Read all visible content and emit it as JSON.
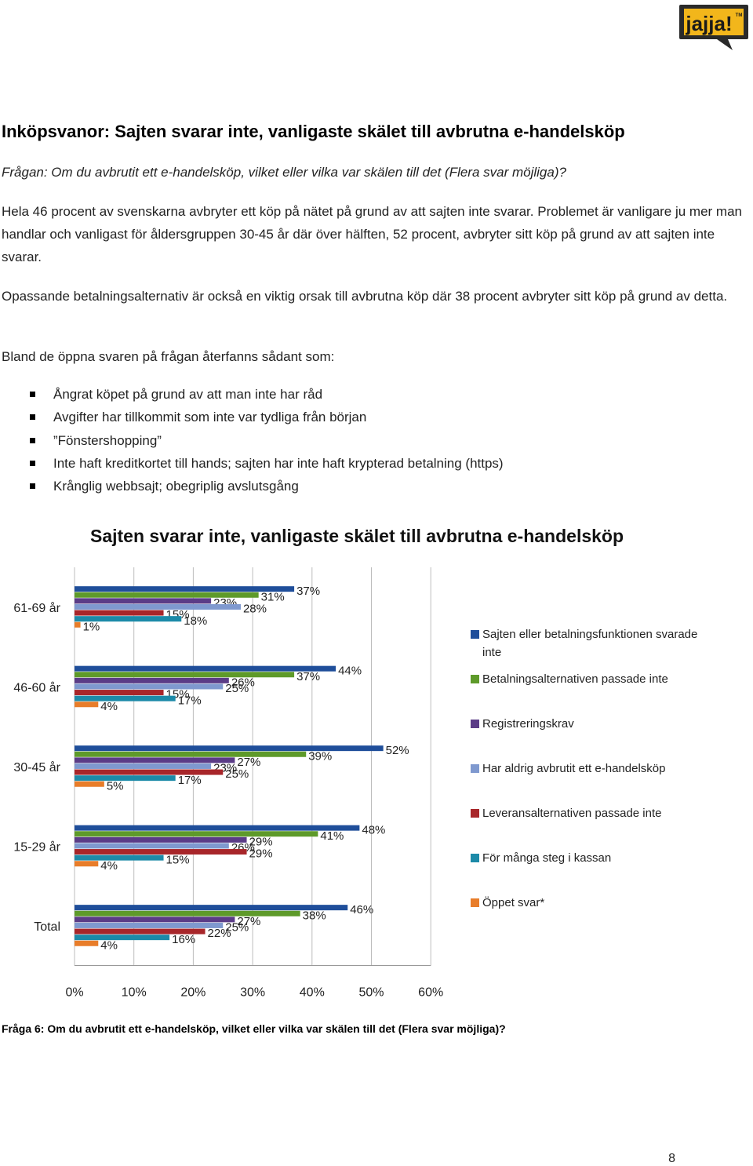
{
  "logo": {
    "text": "jajja!",
    "badge": "TM"
  },
  "heading": "Inköpsvanor: Sajten svarar inte, vanligaste skälet till avbrutna e-handelsköp",
  "question": "Frågan: Om du avbrutit ett e-handelsköp, vilket eller vilka var skälen till det (Flera svar möjliga)?",
  "paragraphs": [
    "Hela 46 procent av svenskarna avbryter ett köp på nätet på grund av att sajten inte svarar. Problemet är vanligare ju mer man handlar och vanligast för åldersgruppen 30-45 år där över hälften, 52 procent, avbryter sitt köp på grund av att sajten inte svarar.",
    "Opassande betalningsalternativ är också en viktig orsak till avbrutna köp där 38 procent avbryter sitt köp på grund av detta.",
    "Bland de öppna svaren på frågan återfanns sådant som:"
  ],
  "bullets": [
    "Ångrat köpet på grund av att man inte har råd",
    "Avgifter har tillkommit som inte var tydliga från början",
    "”Fönstershopping”",
    "Inte haft kreditkortet till hands; sajten har inte haft krypterad betalning (https)",
    "Krånglig webbsajt; obegriplig avslutsgång"
  ],
  "chart_data": {
    "type": "bar",
    "orientation": "horizontal",
    "title": "Sajten svarar inte, vanligaste skälet till avbrutna e-handelsköp",
    "categories": [
      "61-69 år",
      "46-60 år",
      "30-45 år",
      "15-29 år",
      "Total"
    ],
    "xlim": [
      0,
      60
    ],
    "x_ticks": [
      "0%",
      "10%",
      "20%",
      "30%",
      "40%",
      "50%",
      "60%"
    ],
    "value_suffix": "%",
    "grid": true,
    "legend_position": "right",
    "series": [
      {
        "name": "Sajten eller betalningsfunktionen svarade inte",
        "color": "#1F4E9A",
        "values": [
          37,
          44,
          52,
          48,
          46
        ]
      },
      {
        "name": "Betalningsalternativen passade inte",
        "color": "#5E9A2A",
        "values": [
          31,
          37,
          39,
          41,
          38
        ]
      },
      {
        "name": "Registreringskrav",
        "color": "#5B3C87",
        "values": [
          23,
          26,
          27,
          29,
          27
        ]
      },
      {
        "name": "Har aldrig avbrutit ett e-handelsköp",
        "color": "#7F99CF",
        "values": [
          28,
          25,
          23,
          26,
          25
        ]
      },
      {
        "name": "Leveransalternativen passade inte",
        "color": "#A8262A",
        "values": [
          15,
          15,
          25,
          29,
          22
        ]
      },
      {
        "name": "För många steg i kassan",
        "color": "#1C8AA8",
        "values": [
          18,
          17,
          17,
          15,
          16
        ]
      },
      {
        "name": "Öppet svar*",
        "color": "#E87D2A",
        "values": [
          1,
          4,
          5,
          4,
          4
        ]
      }
    ]
  },
  "caption": "Fråga 6: Om du avbrutit ett e-handelsköp, vilket eller vilka var skälen till det (Flera svar möjliga)?",
  "page_number": "8"
}
